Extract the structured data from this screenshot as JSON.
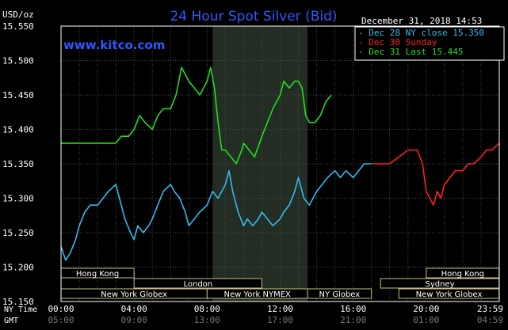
{
  "chart_data": {
    "type": "line",
    "title": "24 Hour Spot Silver (Bid)",
    "watermark": "www.kitco.com",
    "timestamp": "December 31, 2018 14:53",
    "y_unit": "USD/oz",
    "ylim": [
      15.15,
      15.55
    ],
    "y_ticks": [
      "15.550",
      "15.500",
      "15.450",
      "15.400",
      "15.350",
      "15.300",
      "15.250",
      "15.200",
      "15.150"
    ],
    "x_row_label": "NY Time",
    "x_ticks": [
      "00:00",
      "04:00",
      "08:00",
      "12:00",
      "16:00",
      "20:00",
      "23:59"
    ],
    "gmt_label": "GMT",
    "gmt_ticks": [
      "05:00",
      "09:00",
      "13:00",
      "17:00",
      "21:00",
      "01:00",
      "04:59"
    ],
    "grid": true,
    "legend": [
      {
        "text": "- Dec 28 NY close 15.350",
        "color": "#33bbee"
      },
      {
        "text": "- Dec 30 Sunday",
        "color": "#ff2020"
      },
      {
        "text": "- Dec 31 Last 15.445",
        "color": "#22dd22"
      }
    ],
    "series": [
      {
        "id": "dec28",
        "color": "#33bbee",
        "x": [
          0,
          0.25,
          0.5,
          0.8,
          1,
          1.3,
          1.6,
          2,
          2.3,
          2.6,
          3,
          3.2,
          3.5,
          3.8,
          4,
          4.2,
          4.5,
          4.8,
          5,
          5.3,
          5.6,
          6,
          6.2,
          6.5,
          6.8,
          7,
          7.3,
          7.6,
          8,
          8.3,
          8.6,
          9,
          9.2,
          9.4,
          9.7,
          10,
          10.2,
          10.5,
          10.8,
          11,
          11.3,
          11.6,
          12,
          12.2,
          12.5,
          12.8,
          13,
          13.3,
          13.6,
          14,
          14.3,
          14.6,
          15,
          15.3,
          15.6,
          16,
          16.3,
          16.6,
          17
        ],
        "y": [
          15.23,
          15.21,
          15.22,
          15.24,
          15.26,
          15.28,
          15.29,
          15.29,
          15.3,
          15.31,
          15.32,
          15.3,
          15.27,
          15.25,
          15.24,
          15.26,
          15.25,
          15.26,
          15.27,
          15.29,
          15.31,
          15.32,
          15.31,
          15.3,
          15.28,
          15.26,
          15.27,
          15.28,
          15.29,
          15.31,
          15.3,
          15.32,
          15.34,
          15.31,
          15.28,
          15.26,
          15.27,
          15.26,
          15.27,
          15.28,
          15.27,
          15.26,
          15.27,
          15.28,
          15.29,
          15.31,
          15.33,
          15.3,
          15.29,
          15.31,
          15.32,
          15.33,
          15.34,
          15.33,
          15.34,
          15.33,
          15.34,
          15.35,
          15.35
        ]
      },
      {
        "id": "dec30",
        "color": "#ff2020",
        "x": [
          17,
          17.5,
          18,
          18.5,
          19,
          19.5,
          19.8,
          20,
          20.2,
          20.4,
          20.6,
          20.8,
          21,
          21.3,
          21.6,
          22,
          22.3,
          22.6,
          23,
          23.3,
          23.6,
          23.99
        ],
        "y": [
          15.35,
          15.35,
          15.35,
          15.36,
          15.37,
          15.37,
          15.35,
          15.31,
          15.3,
          15.29,
          15.31,
          15.3,
          15.32,
          15.33,
          15.34,
          15.34,
          15.35,
          15.35,
          15.36,
          15.37,
          15.37,
          15.38
        ]
      },
      {
        "id": "dec31",
        "color": "#22dd22",
        "x": [
          0,
          0.5,
          1,
          1.5,
          2,
          2.5,
          3,
          3.3,
          3.7,
          4,
          4.3,
          4.6,
          5,
          5.3,
          5.6,
          6,
          6.3,
          6.6,
          7,
          7.3,
          7.6,
          8,
          8.2,
          8.4,
          8.6,
          8.8,
          9,
          9.3,
          9.6,
          9.9,
          10,
          10.3,
          10.6,
          11,
          11.3,
          11.6,
          12,
          12.2,
          12.5,
          12.8,
          13,
          13.2,
          13.4,
          13.6,
          13.9,
          14.2,
          14.5,
          14.8
        ],
        "y": [
          15.38,
          15.38,
          15.38,
          15.38,
          15.38,
          15.38,
          15.38,
          15.39,
          15.39,
          15.4,
          15.42,
          15.41,
          15.4,
          15.42,
          15.43,
          15.43,
          15.45,
          15.49,
          15.47,
          15.46,
          15.45,
          15.47,
          15.49,
          15.46,
          15.41,
          15.37,
          15.37,
          15.36,
          15.35,
          15.37,
          15.38,
          15.37,
          15.36,
          15.39,
          15.41,
          15.43,
          15.45,
          15.47,
          15.46,
          15.47,
          15.47,
          15.46,
          15.42,
          15.41,
          15.41,
          15.42,
          15.44,
          15.45
        ]
      }
    ],
    "sessions": [
      {
        "name": "Hong Kong",
        "start": 0,
        "end": 4,
        "row": 0
      },
      {
        "name": "London",
        "start": 4,
        "end": 11,
        "row": 1
      },
      {
        "name": "New York Globex",
        "start": 0,
        "end": 8,
        "row": 2
      },
      {
        "name": "New York NYMEX",
        "start": 8,
        "end": 13.5,
        "row": 2
      },
      {
        "name": "NY Globex",
        "start": 13.5,
        "end": 17,
        "row": 2
      },
      {
        "name": "Hong Kong",
        "start": 20,
        "end": 23.99,
        "row": 0
      },
      {
        "name": "Sydney",
        "start": 17.5,
        "end": 23.99,
        "row": 1
      },
      {
        "name": "New York Globex",
        "start": 18.5,
        "end": 23.99,
        "row": 2
      }
    ],
    "shaded_region": [
      8.3,
      13.5
    ]
  }
}
